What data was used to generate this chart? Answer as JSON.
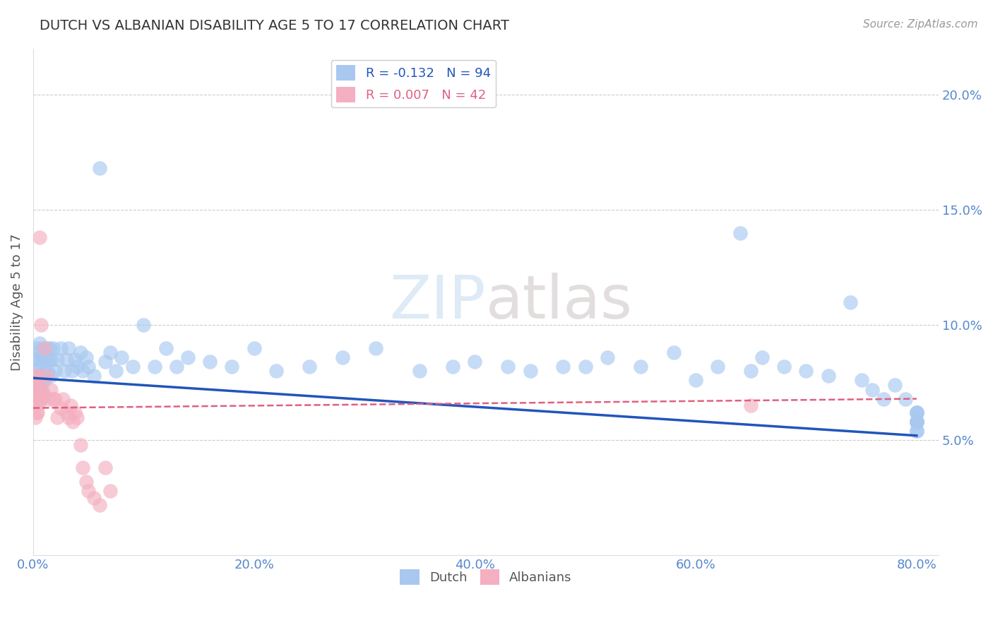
{
  "title": "DUTCH VS ALBANIAN DISABILITY AGE 5 TO 17 CORRELATION CHART",
  "ylabel": "Disability Age 5 to 17",
  "source": "Source: ZipAtlas.com",
  "dutch_R": -0.132,
  "dutch_N": 94,
  "albanian_R": 0.007,
  "albanian_N": 42,
  "xlim": [
    0.0,
    0.82
  ],
  "ylim": [
    0.0,
    0.22
  ],
  "xticks": [
    0.0,
    0.2,
    0.4,
    0.6,
    0.8
  ],
  "yticks": [
    0.05,
    0.1,
    0.15,
    0.2
  ],
  "dutch_color": "#a8c8f0",
  "albanian_color": "#f4afc0",
  "dutch_line_color": "#2255bb",
  "albanian_line_color": "#e06080",
  "title_color": "#333333",
  "axis_label_color": "#555555",
  "tick_color": "#5588cc",
  "grid_color": "#cccccc",
  "background_color": "#ffffff",
  "dutch_x": [
    0.002,
    0.002,
    0.003,
    0.003,
    0.003,
    0.004,
    0.004,
    0.005,
    0.005,
    0.005,
    0.006,
    0.006,
    0.006,
    0.007,
    0.007,
    0.008,
    0.008,
    0.009,
    0.009,
    0.01,
    0.01,
    0.011,
    0.012,
    0.013,
    0.014,
    0.015,
    0.016,
    0.017,
    0.018,
    0.02,
    0.022,
    0.025,
    0.028,
    0.03,
    0.032,
    0.035,
    0.038,
    0.04,
    0.043,
    0.045,
    0.048,
    0.05,
    0.055,
    0.06,
    0.065,
    0.07,
    0.075,
    0.08,
    0.09,
    0.1,
    0.11,
    0.12,
    0.13,
    0.14,
    0.16,
    0.18,
    0.2,
    0.22,
    0.25,
    0.28,
    0.31,
    0.35,
    0.38,
    0.4,
    0.43,
    0.45,
    0.48,
    0.5,
    0.52,
    0.55,
    0.58,
    0.6,
    0.62,
    0.64,
    0.65,
    0.66,
    0.68,
    0.7,
    0.72,
    0.74,
    0.75,
    0.76,
    0.77,
    0.78,
    0.79,
    0.8,
    0.8,
    0.8,
    0.8,
    0.8,
    0.8,
    0.8,
    0.8,
    0.8
  ],
  "dutch_y": [
    0.075,
    0.085,
    0.07,
    0.08,
    0.09,
    0.075,
    0.085,
    0.068,
    0.078,
    0.088,
    0.072,
    0.082,
    0.092,
    0.068,
    0.078,
    0.075,
    0.085,
    0.07,
    0.09,
    0.08,
    0.076,
    0.085,
    0.09,
    0.08,
    0.085,
    0.09,
    0.078,
    0.085,
    0.09,
    0.08,
    0.085,
    0.09,
    0.08,
    0.085,
    0.09,
    0.08,
    0.085,
    0.082,
    0.088,
    0.08,
    0.086,
    0.082,
    0.078,
    0.168,
    0.084,
    0.088,
    0.08,
    0.086,
    0.082,
    0.1,
    0.082,
    0.09,
    0.082,
    0.086,
    0.084,
    0.082,
    0.09,
    0.08,
    0.082,
    0.086,
    0.09,
    0.08,
    0.082,
    0.084,
    0.082,
    0.08,
    0.082,
    0.082,
    0.086,
    0.082,
    0.088,
    0.076,
    0.082,
    0.14,
    0.08,
    0.086,
    0.082,
    0.08,
    0.078,
    0.11,
    0.076,
    0.072,
    0.068,
    0.074,
    0.068,
    0.062,
    0.058,
    0.054,
    0.058,
    0.062,
    0.058,
    0.054,
    0.058,
    0.062
  ],
  "albanian_x": [
    0.001,
    0.001,
    0.002,
    0.002,
    0.002,
    0.003,
    0.003,
    0.003,
    0.004,
    0.004,
    0.004,
    0.005,
    0.005,
    0.006,
    0.007,
    0.007,
    0.008,
    0.009,
    0.01,
    0.012,
    0.014,
    0.016,
    0.018,
    0.02,
    0.022,
    0.025,
    0.027,
    0.03,
    0.032,
    0.034,
    0.036,
    0.038,
    0.04,
    0.043,
    0.045,
    0.048,
    0.05,
    0.055,
    0.06,
    0.065,
    0.07,
    0.65
  ],
  "albanian_y": [
    0.068,
    0.075,
    0.06,
    0.068,
    0.075,
    0.062,
    0.07,
    0.078,
    0.062,
    0.07,
    0.078,
    0.066,
    0.074,
    0.138,
    0.1,
    0.068,
    0.072,
    0.07,
    0.09,
    0.078,
    0.068,
    0.072,
    0.068,
    0.068,
    0.06,
    0.064,
    0.068,
    0.062,
    0.06,
    0.065,
    0.058,
    0.062,
    0.06,
    0.048,
    0.038,
    0.032,
    0.028,
    0.025,
    0.022,
    0.038,
    0.028,
    0.065
  ],
  "dutch_line_x0": 0.0,
  "dutch_line_y0": 0.077,
  "dutch_line_x1": 0.8,
  "dutch_line_y1": 0.052,
  "alb_line_x0": 0.0,
  "alb_line_y0": 0.064,
  "alb_line_x1": 0.8,
  "alb_line_y1": 0.068
}
